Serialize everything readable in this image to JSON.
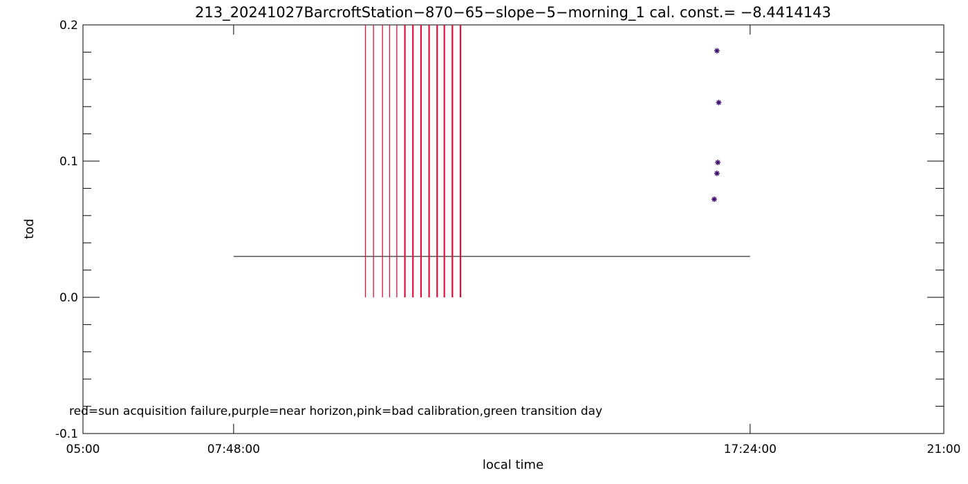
{
  "chart_data": {
    "type": "scatter",
    "title": "213_20241027BarcroftStation−870−65−slope−5−morning_1 cal. const.= −8.4414143",
    "xlabel": "local time",
    "ylabel": "tod",
    "xlim": [
      "05:00",
      "21:00"
    ],
    "ylim": [
      -0.1,
      0.2
    ],
    "x_tick_labels": [
      "05:00",
      "07:48:00",
      "17:24:00",
      "21:00"
    ],
    "y_tick_labels": [
      "-0.1",
      "0.0",
      "0.1",
      "0.2"
    ],
    "y_tick_values": [
      -0.1,
      0.0,
      0.1,
      0.2
    ],
    "legend_note": "red=sun acquisition failure,purple=near horizon,pink=bad calibration,green transition day",
    "reference_line": {
      "y": 0.03,
      "x_start": "07:48:00",
      "x_end": "17:24:00",
      "color": "#000000"
    },
    "failure_lines": {
      "color": "#e0103a",
      "y_from": 0.0,
      "y_to": 0.2,
      "x": [
        "10:15",
        "10:24",
        "10:34",
        "10:42",
        "10:50",
        "10:59",
        "11:08",
        "11:17",
        "11:26",
        "11:35",
        "11:43",
        "11:52",
        "12:01"
      ]
    },
    "series": [
      {
        "marker": "asterisk",
        "color": "#3a0a6e",
        "x": [
          "16:44",
          "16:47",
          "16:48",
          "16:49",
          "16:47"
        ],
        "y": [
          0.072,
          0.091,
          0.099,
          0.143,
          0.181
        ]
      }
    ]
  }
}
